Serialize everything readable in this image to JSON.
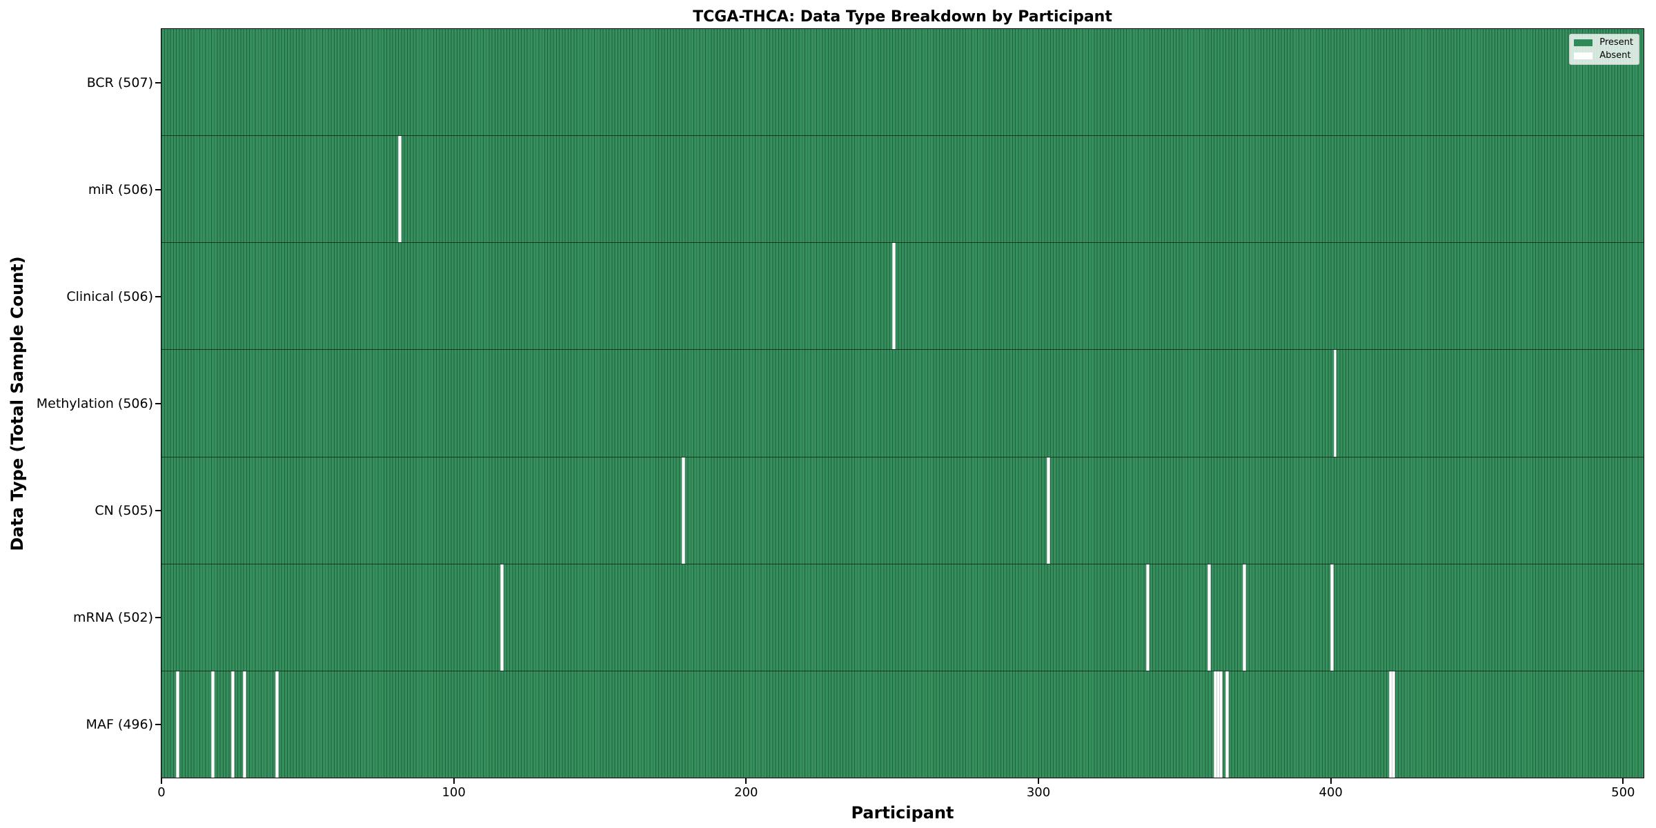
{
  "title": "TCGA-THCA: Data Type Breakdown by Participant",
  "axes": {
    "x_label": "Participant",
    "y_label": "Data Type (Total Sample Count)"
  },
  "legend": {
    "items": [
      {
        "label": "Present",
        "color": "#2e8b57"
      },
      {
        "label": "Absent",
        "color": "#ffffff"
      }
    ]
  },
  "colors": {
    "present": "#2e8b57",
    "absent": "#ffffff",
    "cell_edge": "#1c5436",
    "plot_border": "#000000"
  },
  "chart_data": {
    "type": "heatmap",
    "title": "TCGA-THCA: Data Type Breakdown by Participant",
    "xlabel": "Participant",
    "ylabel": "Data Type (Total Sample Count)",
    "legend_entries": [
      "Present",
      "Absent"
    ],
    "legend_position": "upper right",
    "n_participants": 507,
    "x_tick_values": [
      0,
      100,
      200,
      300,
      400,
      500
    ],
    "x_range": [
      0,
      507
    ],
    "grid": false,
    "rows": [
      {
        "data_type": "BCR",
        "count": 507,
        "label": "BCR (507)",
        "absent_participants": []
      },
      {
        "data_type": "miR",
        "count": 506,
        "label": "miR (506)",
        "absent_participants": [
          81
        ]
      },
      {
        "data_type": "Clinical",
        "count": 506,
        "label": "Clinical (506)",
        "absent_participants": [
          250
        ]
      },
      {
        "data_type": "Methylation",
        "count": 506,
        "label": "Methylation (506)",
        "absent_participants": [
          401
        ]
      },
      {
        "data_type": "CN",
        "count": 505,
        "label": "CN (505)",
        "absent_participants": [
          178,
          303
        ]
      },
      {
        "data_type": "mRNA",
        "count": 502,
        "label": "mRNA (502)",
        "absent_participants": [
          116,
          337,
          358,
          370,
          400
        ]
      },
      {
        "data_type": "MAF",
        "count": 496,
        "label": "MAF (496)",
        "absent_participants": [
          5,
          17,
          24,
          28,
          39,
          360,
          361,
          362,
          364,
          420,
          421
        ]
      }
    ]
  }
}
